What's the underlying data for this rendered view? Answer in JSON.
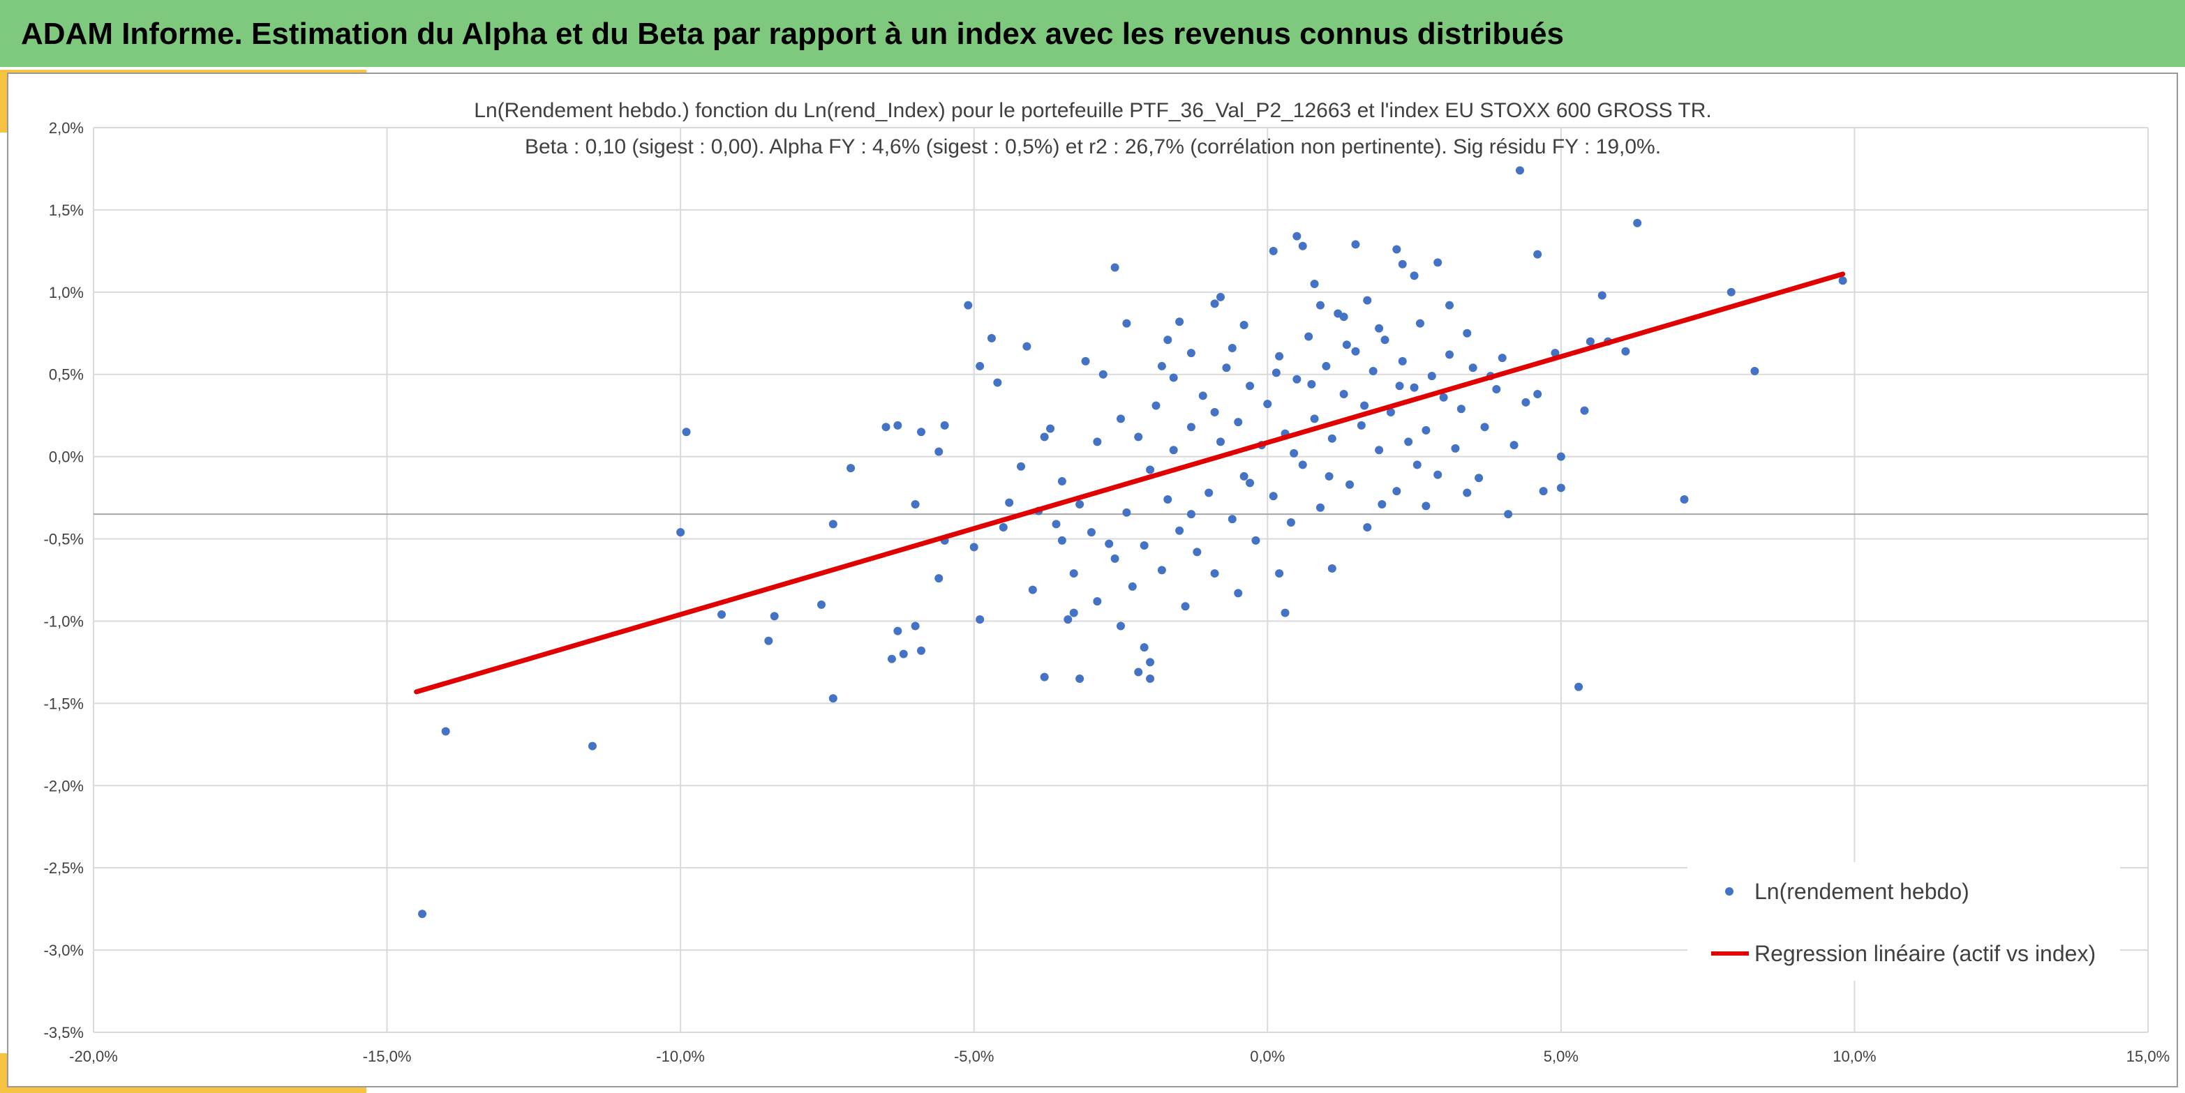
{
  "header": {
    "title": "ADAM Informe. Estimation du Alpha et du Beta par rapport à un index avec les revenus connus distribués"
  },
  "colors": {
    "header_bg": "#7fc97f",
    "accent": "#f5c242",
    "series": "#4472c4",
    "regression": "#e00000",
    "grid": "#d9d9d9"
  },
  "chart_data": {
    "type": "scatter",
    "title": "Ln(Rendement hebdo.) fonction du Ln(rend_Index) pour le portefeuille PTF_36_Val_P2_12663 et l'index EU STOXX 600 GROSS TR.",
    "subtitle": "Beta : 0,10 (sigest : 0,00). Alpha FY : 4,6% (sigest : 0,5%) et r2 : 26,7% (corrélation non pertinente). Sig résidu FY : 19,0%.",
    "xlabel": "",
    "ylabel": "",
    "xlim": [
      -20,
      15
    ],
    "ylim": [
      -3.5,
      2.0
    ],
    "x_ticks": [
      -20,
      -15,
      -10,
      -5,
      0,
      5,
      10,
      15
    ],
    "y_ticks": [
      -3.5,
      -3.0,
      -2.5,
      -2.0,
      -1.5,
      -1.0,
      -0.5,
      0.0,
      0.5,
      1.0,
      1.5,
      2.0
    ],
    "x_tick_labels": [
      "-20,0%",
      "-15,0%",
      "-10,0%",
      "-5,0%",
      "0,0%",
      "5,0%",
      "10,0%",
      "15,0%"
    ],
    "y_tick_labels": [
      "-3,5%",
      "-3,0%",
      "-2,5%",
      "-2,0%",
      "-1,5%",
      "-1,0%",
      "-0,5%",
      "0,0%",
      "0,5%",
      "1,0%",
      "1,5%",
      "2,0%"
    ],
    "grid": true,
    "horizontal_reference_line": -0.35,
    "legend": {
      "position": "bottom-right",
      "entries": [
        "Ln(rendement hebdo)",
        "Regression linéaire (actif vs index)"
      ]
    },
    "series": [
      {
        "name": "Ln(rendement hebdo)",
        "kind": "scatter",
        "color": "#4472c4",
        "points": [
          [
            -14.4,
            -2.78
          ],
          [
            -14.0,
            -1.67
          ],
          [
            -11.5,
            -1.76
          ],
          [
            -10.0,
            -0.46
          ],
          [
            -9.9,
            0.15
          ],
          [
            -9.3,
            -0.96
          ],
          [
            -8.5,
            -1.12
          ],
          [
            -8.4,
            -0.97
          ],
          [
            -7.6,
            -0.9
          ],
          [
            -7.4,
            -0.41
          ],
          [
            -7.4,
            -1.47
          ],
          [
            -7.1,
            -0.07
          ],
          [
            -6.5,
            0.18
          ],
          [
            -6.4,
            -1.23
          ],
          [
            -6.3,
            -1.06
          ],
          [
            -6.3,
            0.19
          ],
          [
            -6.2,
            -1.2
          ],
          [
            -6.0,
            -1.03
          ],
          [
            -6.0,
            -0.29
          ],
          [
            -5.9,
            -1.18
          ],
          [
            -5.9,
            0.15
          ],
          [
            -5.6,
            -0.74
          ],
          [
            -5.5,
            -0.51
          ],
          [
            -5.6,
            0.03
          ],
          [
            -5.5,
            0.19
          ],
          [
            -5.1,
            0.92
          ],
          [
            -5.0,
            -0.55
          ],
          [
            -4.9,
            -0.99
          ],
          [
            -4.9,
            0.55
          ],
          [
            -4.7,
            0.72
          ],
          [
            -4.6,
            0.45
          ],
          [
            -4.5,
            -0.43
          ],
          [
            -4.4,
            -0.28
          ],
          [
            -4.1,
            0.67
          ],
          [
            -4.0,
            -0.81
          ],
          [
            -3.8,
            -1.34
          ],
          [
            -3.7,
            0.17
          ],
          [
            -3.5,
            -0.51
          ],
          [
            -3.4,
            -0.99
          ],
          [
            -3.3,
            -0.95
          ],
          [
            -3.2,
            -0.29
          ],
          [
            -3.2,
            -1.35
          ],
          [
            -3.1,
            0.58
          ],
          [
            -2.9,
            -0.88
          ],
          [
            -2.8,
            0.5
          ],
          [
            -2.6,
            1.15
          ],
          [
            -2.5,
            -1.03
          ],
          [
            -2.4,
            0.81
          ],
          [
            -2.2,
            -1.31
          ],
          [
            -2.1,
            -1.16
          ],
          [
            -2.0,
            -1.35
          ],
          [
            -2.0,
            -1.25
          ],
          [
            -1.8,
            0.55
          ],
          [
            -1.5,
            0.82
          ],
          [
            -1.3,
            0.63
          ],
          [
            -0.9,
            0.93
          ],
          [
            -0.8,
            0.97
          ],
          [
            -0.4,
            0.8
          ],
          [
            0.1,
            1.25
          ],
          [
            0.3,
            -0.95
          ],
          [
            0.5,
            1.34
          ],
          [
            0.6,
            1.28
          ],
          [
            0.8,
            1.05
          ],
          [
            1.1,
            -0.68
          ],
          [
            1.3,
            0.85
          ],
          [
            1.5,
            1.29
          ],
          [
            1.9,
            0.78
          ],
          [
            2.2,
            1.26
          ],
          [
            2.3,
            1.17
          ],
          [
            2.5,
            1.1
          ],
          [
            2.7,
            -0.3
          ],
          [
            2.9,
            1.18
          ],
          [
            3.1,
            0.92
          ],
          [
            3.4,
            0.75
          ],
          [
            3.6,
            -0.13
          ],
          [
            3.8,
            0.49
          ],
          [
            4.0,
            0.6
          ],
          [
            4.1,
            -0.35
          ],
          [
            4.3,
            1.74
          ],
          [
            4.6,
            1.23
          ],
          [
            4.6,
            0.38
          ],
          [
            4.7,
            -0.21
          ],
          [
            4.9,
            0.63
          ],
          [
            5.0,
            0.0
          ],
          [
            5.0,
            -0.19
          ],
          [
            5.3,
            -1.4
          ],
          [
            5.4,
            0.28
          ],
          [
            5.5,
            0.7
          ],
          [
            5.7,
            0.98
          ],
          [
            5.8,
            0.7
          ],
          [
            6.1,
            0.64
          ],
          [
            6.3,
            1.42
          ],
          [
            7.1,
            -0.26
          ],
          [
            7.9,
            1.0
          ],
          [
            8.3,
            0.52
          ],
          [
            9.8,
            1.07
          ],
          [
            -3.9,
            -0.33
          ],
          [
            -3.6,
            -0.41
          ],
          [
            -3.5,
            -0.15
          ],
          [
            -3.3,
            -0.71
          ],
          [
            -3.0,
            -0.46
          ],
          [
            -2.9,
            0.09
          ],
          [
            -2.7,
            -0.53
          ],
          [
            -2.6,
            -0.62
          ],
          [
            -2.5,
            0.23
          ],
          [
            -2.4,
            -0.34
          ],
          [
            -2.3,
            -0.79
          ],
          [
            -2.2,
            0.12
          ],
          [
            -2.1,
            -0.54
          ],
          [
            -2.0,
            -0.08
          ],
          [
            -1.9,
            0.31
          ],
          [
            -1.8,
            -0.69
          ],
          [
            -1.7,
            -0.26
          ],
          [
            -1.6,
            0.04
          ],
          [
            -1.5,
            -0.45
          ],
          [
            -1.4,
            -0.91
          ],
          [
            -1.3,
            0.18
          ],
          [
            -1.2,
            -0.58
          ],
          [
            -1.1,
            0.37
          ],
          [
            -1.0,
            -0.22
          ],
          [
            -0.9,
            -0.71
          ],
          [
            -0.8,
            0.09
          ],
          [
            -0.7,
            0.54
          ],
          [
            -0.6,
            -0.38
          ],
          [
            -0.5,
            0.21
          ],
          [
            -0.4,
            -0.12
          ],
          [
            -0.3,
            0.43
          ],
          [
            -0.2,
            -0.51
          ],
          [
            -0.1,
            0.07
          ],
          [
            0.0,
            0.32
          ],
          [
            0.1,
            -0.24
          ],
          [
            0.2,
            0.61
          ],
          [
            0.3,
            0.14
          ],
          [
            0.4,
            -0.4
          ],
          [
            0.5,
            0.47
          ],
          [
            0.6,
            -0.05
          ],
          [
            0.7,
            0.73
          ],
          [
            0.8,
            0.23
          ],
          [
            0.9,
            -0.31
          ],
          [
            1.0,
            0.55
          ],
          [
            1.1,
            0.11
          ],
          [
            1.2,
            0.87
          ],
          [
            1.3,
            0.38
          ],
          [
            1.4,
            -0.17
          ],
          [
            1.5,
            0.64
          ],
          [
            1.6,
            0.19
          ],
          [
            1.7,
            -0.43
          ],
          [
            1.8,
            0.52
          ],
          [
            1.9,
            0.04
          ],
          [
            2.0,
            0.71
          ],
          [
            2.1,
            0.27
          ],
          [
            2.2,
            -0.21
          ],
          [
            2.3,
            0.58
          ],
          [
            2.4,
            0.09
          ],
          [
            2.5,
            0.42
          ],
          [
            2.6,
            0.81
          ],
          [
            2.7,
            0.16
          ],
          [
            2.8,
            0.49
          ],
          [
            2.9,
            -0.11
          ],
          [
            3.0,
            0.36
          ],
          [
            3.1,
            0.62
          ],
          [
            3.2,
            0.05
          ],
          [
            3.3,
            0.29
          ],
          [
            3.4,
            -0.22
          ],
          [
            3.5,
            0.54
          ],
          [
            3.7,
            0.18
          ],
          [
            3.9,
            0.41
          ],
          [
            4.2,
            0.07
          ],
          [
            4.4,
            0.33
          ],
          [
            -1.6,
            0.48
          ],
          [
            -1.3,
            -0.35
          ],
          [
            -0.9,
            0.27
          ],
          [
            -0.6,
            0.66
          ],
          [
            -0.3,
            -0.16
          ],
          [
            0.15,
            0.51
          ],
          [
            0.45,
            0.02
          ],
          [
            0.75,
            0.44
          ],
          [
            1.05,
            -0.12
          ],
          [
            1.35,
            0.68
          ],
          [
            1.65,
            0.31
          ],
          [
            1.95,
            -0.29
          ],
          [
            2.25,
            0.43
          ],
          [
            2.55,
            -0.05
          ],
          [
            -4.2,
            -0.06
          ],
          [
            -3.8,
            0.12
          ],
          [
            -1.7,
            0.71
          ],
          [
            -0.5,
            -0.83
          ],
          [
            0.2,
            -0.71
          ],
          [
            0.9,
            0.92
          ],
          [
            1.7,
            0.95
          ]
        ]
      },
      {
        "name": "Regression linéaire (actif vs index)",
        "kind": "line",
        "color": "#e00000",
        "points": [
          [
            -14.5,
            -1.43
          ],
          [
            9.8,
            1.11
          ]
        ]
      }
    ]
  }
}
